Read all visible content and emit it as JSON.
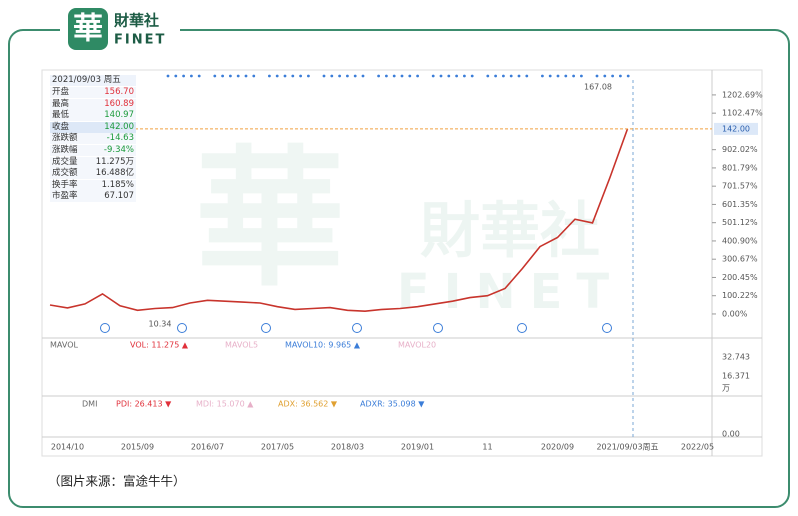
{
  "header": {
    "logo_mark": "華",
    "logo_name": "財華社",
    "logo_en": "FINET"
  },
  "watermark": {
    "mark": "華",
    "name": "財華社",
    "en": "FINET"
  },
  "quote": {
    "date": "2021/09/03 周五",
    "rows": [
      [
        "开盘",
        "156.70"
      ],
      [
        "最高",
        "160.89"
      ],
      [
        "最低",
        "140.97"
      ],
      [
        "收盘",
        "142.00"
      ],
      [
        "涨跌额",
        "-14.63"
      ],
      [
        "涨跌幅",
        "-9.34%"
      ],
      [
        "成交量",
        "11.275万"
      ],
      [
        "成交额",
        "16.488亿"
      ],
      [
        "换手率",
        "1.185%"
      ],
      [
        "市盈率",
        "67.107"
      ]
    ],
    "colors": [
      "#e0303a",
      "#e0303a",
      "#1a9a3a",
      "#1a9a3a",
      "#1a9a3a",
      "#1a9a3a",
      "#333333",
      "#333333",
      "#333333",
      "#333333"
    ]
  },
  "chart_data": {
    "type": "line",
    "categories": [
      null,
      "2014/10",
      null,
      null,
      null,
      "2015/09",
      null,
      null,
      null,
      "2016/07",
      null,
      null,
      null,
      "2017/05",
      null,
      null,
      null,
      "2018/03",
      null,
      null,
      null,
      "2019/01",
      null,
      null,
      null,
      "11",
      null,
      null,
      null,
      "2020/09",
      null,
      null,
      null,
      "2021/09/03周五",
      null,
      null,
      null,
      "2022/05"
    ],
    "series": [
      {
        "name": "收盘",
        "color": "#c8342c",
        "values": [
          49,
          33,
          55,
          110,
          45,
          20,
          30,
          35,
          60,
          75,
          70,
          65,
          60,
          40,
          25,
          30,
          35,
          20,
          15,
          25,
          30,
          40,
          55,
          70,
          90,
          100,
          140,
          250,
          370,
          420,
          520,
          500,
          750,
          1016,
          null,
          null,
          null,
          null
        ]
      }
    ],
    "ylim": [
      -132,
      1312
    ],
    "yticks": [
      {
        "value": 0,
        "label": "0.00%"
      },
      {
        "value": 100.22,
        "label": "100.22%"
      },
      {
        "value": 200.45,
        "label": "200.45%"
      },
      {
        "value": 300.67,
        "label": "300.67%"
      },
      {
        "value": 400.9,
        "label": "400.90%"
      },
      {
        "value": 501.12,
        "label": "501.12%"
      },
      {
        "value": 601.35,
        "label": "601.35%"
      },
      {
        "value": 701.57,
        "label": "701.57%"
      },
      {
        "value": 801.79,
        "label": "801.79%"
      },
      {
        "value": 902.02,
        "label": "902.02%"
      },
      {
        "value": 1102.47,
        "label": "1102.47%"
      },
      {
        "value": 1202.69,
        "label": "1202.69%"
      }
    ],
    "grid": false,
    "last_price": {
      "value": 1016,
      "label": "142.00"
    },
    "max_label": "167.08",
    "min_label": "10.34"
  },
  "panels": {
    "volume": {
      "name": "MAVOL",
      "labels": [
        "VOL: 11.275 ▲",
        "MAVOL5",
        "MAVOL10: 9.965 ▲",
        "MAVOL20"
      ],
      "axis": [
        "32.743",
        "16.371",
        "万"
      ]
    },
    "dmi": {
      "name": "DMI",
      "labels": [
        "PDI: 26.413 ▼",
        "MDI: 15.070 ▲",
        "ADX: 36.562 ▼",
        "ADXR: 35.098 ▼"
      ],
      "axis": [
        "0.00"
      ]
    }
  },
  "caption": "（图片来源：富途牛牛）"
}
